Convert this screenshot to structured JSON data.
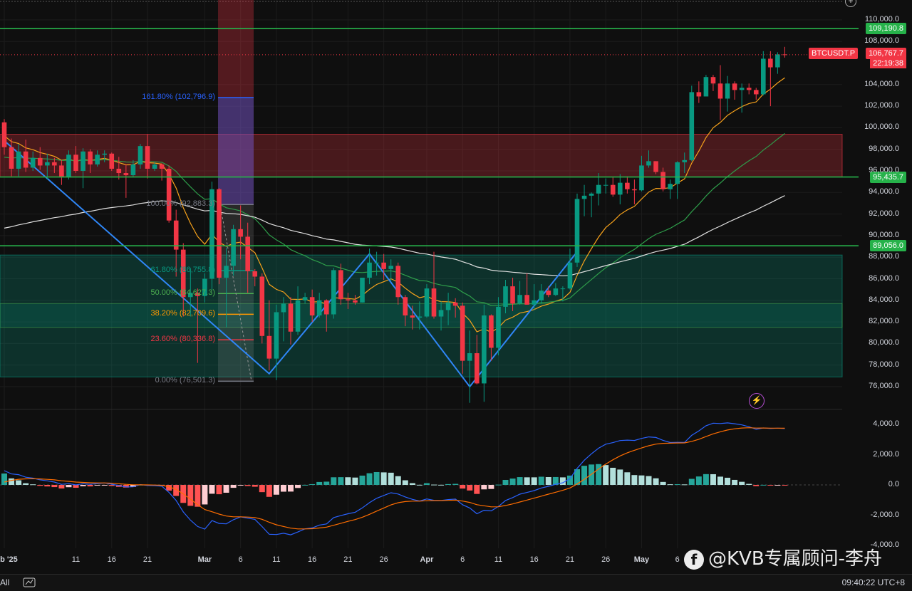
{
  "chart_data": {
    "type": "candlestick",
    "symbol": "BTCUSDT.P",
    "last_price": "106,767.7",
    "countdown": "22:19:38",
    "price_axis": [
      "110,000.0",
      "108,000.0",
      "104,000.0",
      "102,000.0",
      "100,000.0",
      "98,000.0",
      "96,000.0",
      "94,000.0",
      "92,000.0",
      "90,000.0",
      "88,000.0",
      "86,000.0",
      "84,000.0",
      "82,000.0",
      "80,000.0",
      "78,000.0",
      "76,000.0"
    ],
    "price_axis_values": [
      110000,
      108000,
      104000,
      102000,
      100000,
      98000,
      96000,
      94000,
      92000,
      90000,
      88000,
      86000,
      84000,
      82000,
      80000,
      78000,
      76000
    ],
    "level_badges": [
      {
        "label": "109,190.8",
        "value": 109190.8,
        "color": "green"
      },
      {
        "label": "95,435.7",
        "value": 95435.7,
        "color": "green"
      },
      {
        "label": "89,056.0",
        "value": 89056.0,
        "color": "green"
      }
    ],
    "fib_levels": [
      {
        "label": "161.80% (102,796.9)",
        "value": 102796.9,
        "color": "#2962ff"
      },
      {
        "label": "100.00% (92,883.3)",
        "value": 92883.3,
        "color": "#787b86"
      },
      {
        "label": "61.80% (86,755.8)",
        "value": 86755.8,
        "color": "#089981"
      },
      {
        "label": "50.00% (84,627.3)",
        "value": 84627.3,
        "color": "#4caf50"
      },
      {
        "label": "38.20% (82,709.6)",
        "value": 82709.6,
        "color": "#ff9800"
      },
      {
        "label": "23.60% (80,336.8)",
        "value": 80336.8,
        "color": "#f23645"
      },
      {
        "label": "0.00% (76,501.3)",
        "value": 76501.3,
        "color": "#787b86"
      }
    ],
    "zones": [
      {
        "name": "supply",
        "low": 95435.7,
        "high": 99400,
        "color": "#f23645"
      },
      {
        "name": "demand",
        "low": 76900,
        "high": 88200,
        "color": "#089981"
      }
    ],
    "x_axis": [
      "Feb '25",
      "11",
      "16",
      "21",
      "Mar",
      "6",
      "11",
      "16",
      "21",
      "26",
      "Apr",
      "6",
      "11",
      "16",
      "21",
      "26",
      "May",
      "6"
    ],
    "x_axis_dates": [
      "2025-02-01",
      "2025-02-11",
      "2025-02-16",
      "2025-02-21",
      "2025-03-01",
      "2025-03-06",
      "2025-03-11",
      "2025-03-16",
      "2025-03-21",
      "2025-03-26",
      "2025-04-01",
      "2025-04-06",
      "2025-04-11",
      "2025-04-16",
      "2025-04-21",
      "2025-04-26",
      "2025-05-01",
      "2025-05-06"
    ],
    "candles": [
      [
        "2025-02-01",
        100500,
        100800,
        97500,
        98200
      ],
      [
        "2025-02-02",
        98200,
        99000,
        95500,
        96200
      ],
      [
        "2025-02-03",
        96200,
        98500,
        95500,
        97800
      ],
      [
        "2025-02-04",
        97800,
        98900,
        95900,
        96300
      ],
      [
        "2025-02-05",
        96300,
        97800,
        96000,
        97200
      ],
      [
        "2025-02-06",
        97200,
        98200,
        96100,
        96500
      ],
      [
        "2025-02-07",
        96500,
        97600,
        95200,
        96800
      ],
      [
        "2025-02-08",
        96800,
        97200,
        95800,
        96500
      ],
      [
        "2025-02-09",
        96500,
        97000,
        94700,
        95400
      ],
      [
        "2025-02-10",
        95400,
        97900,
        95200,
        97500
      ],
      [
        "2025-02-11",
        97500,
        98300,
        95800,
        96000
      ],
      [
        "2025-02-12",
        96000,
        98100,
        94400,
        97800
      ],
      [
        "2025-02-13",
        97800,
        98000,
        95800,
        96600
      ],
      [
        "2025-02-14",
        96600,
        97900,
        96400,
        97500
      ],
      [
        "2025-02-15",
        97500,
        97900,
        96800,
        97600
      ],
      [
        "2025-02-16",
        97600,
        97700,
        96000,
        96200
      ],
      [
        "2025-02-17",
        96200,
        97300,
        95200,
        95800
      ],
      [
        "2025-02-18",
        95800,
        96600,
        93500,
        95600
      ],
      [
        "2025-02-19",
        95600,
        97000,
        95400,
        96600
      ],
      [
        "2025-02-20",
        96600,
        98500,
        96200,
        98300
      ],
      [
        "2025-02-21",
        98300,
        99400,
        95300,
        96200
      ],
      [
        "2025-02-22",
        96200,
        96800,
        96000,
        96600
      ],
      [
        "2025-02-23",
        96600,
        96700,
        95100,
        96200
      ],
      [
        "2025-02-24",
        96200,
        96500,
        91200,
        91400
      ],
      [
        "2025-02-25",
        91400,
        92400,
        86200,
        88700
      ],
      [
        "2025-02-26",
        88700,
        89300,
        82500,
        84300
      ],
      [
        "2025-02-27",
        84300,
        87000,
        82500,
        84700
      ],
      [
        "2025-02-28",
        84700,
        85100,
        78200,
        84400
      ],
      [
        "2025-03-01",
        84400,
        86500,
        83800,
        86000
      ],
      [
        "2025-03-02",
        86000,
        95000,
        85000,
        94300
      ],
      [
        "2025-03-03",
        94300,
        94400,
        85500,
        86100
      ],
      [
        "2025-03-04",
        86100,
        88900,
        81500,
        87200
      ],
      [
        "2025-03-05",
        87200,
        91000,
        86300,
        90600
      ],
      [
        "2025-03-06",
        90600,
        92800,
        87800,
        89900
      ],
      [
        "2025-03-07",
        89900,
        91200,
        84700,
        86700
      ],
      [
        "2025-03-08",
        86700,
        86900,
        85300,
        86200
      ],
      [
        "2025-03-09",
        86200,
        86500,
        80000,
        80700
      ],
      [
        "2025-03-10",
        80700,
        84000,
        77500,
        78600
      ],
      [
        "2025-03-11",
        78600,
        83600,
        76600,
        82900
      ],
      [
        "2025-03-12",
        82900,
        84300,
        80200,
        83700
      ],
      [
        "2025-03-13",
        83700,
        84300,
        79900,
        81100
      ],
      [
        "2025-03-14",
        81100,
        85300,
        80800,
        84000
      ],
      [
        "2025-03-15",
        84000,
        84700,
        83700,
        84300
      ],
      [
        "2025-03-16",
        84300,
        85000,
        82000,
        82600
      ],
      [
        "2025-03-17",
        82600,
        84700,
        82400,
        84000
      ],
      [
        "2025-03-18",
        84000,
        84100,
        81100,
        82700
      ],
      [
        "2025-03-19",
        82700,
        87000,
        82300,
        86800
      ],
      [
        "2025-03-20",
        86800,
        87400,
        83600,
        84100
      ],
      [
        "2025-03-21",
        84100,
        84700,
        83200,
        84000
      ],
      [
        "2025-03-22",
        84000,
        84500,
        83600,
        83800
      ],
      [
        "2025-03-23",
        83800,
        86100,
        83800,
        86100
      ],
      [
        "2025-03-24",
        86100,
        88800,
        85500,
        87500
      ],
      [
        "2025-03-25",
        87500,
        88500,
        86300,
        87500
      ],
      [
        "2025-03-26",
        87500,
        88300,
        85900,
        86900
      ],
      [
        "2025-03-27",
        86900,
        87800,
        85800,
        87200
      ],
      [
        "2025-03-28",
        87200,
        87500,
        83600,
        84300
      ],
      [
        "2025-03-29",
        84300,
        84500,
        81600,
        82600
      ],
      [
        "2025-03-30",
        82600,
        83500,
        81300,
        82400
      ],
      [
        "2025-03-31",
        82400,
        83900,
        81300,
        82500
      ],
      [
        "2025-04-01",
        82500,
        85500,
        82400,
        85100
      ],
      [
        "2025-04-02",
        85100,
        88500,
        82300,
        82500
      ],
      [
        "2025-04-03",
        82500,
        83900,
        81200,
        83100
      ],
      [
        "2025-04-04",
        83100,
        84700,
        81700,
        83800
      ],
      [
        "2025-04-05",
        83800,
        84200,
        82400,
        83500
      ],
      [
        "2025-04-06",
        83500,
        83800,
        77200,
        78400
      ],
      [
        "2025-04-07",
        78400,
        81200,
        74500,
        79100
      ],
      [
        "2025-04-08",
        79100,
        80800,
        76200,
        76300
      ],
      [
        "2025-04-09",
        76300,
        83600,
        74600,
        82600
      ],
      [
        "2025-04-10",
        82600,
        82700,
        78400,
        79600
      ],
      [
        "2025-04-11",
        79600,
        84300,
        78900,
        83400
      ],
      [
        "2025-04-12",
        83400,
        85900,
        82800,
        85300
      ],
      [
        "2025-04-13",
        85300,
        86100,
        83000,
        83700
      ],
      [
        "2025-04-14",
        83700,
        85800,
        83600,
        84500
      ],
      [
        "2025-04-15",
        84500,
        86500,
        83600,
        83600
      ],
      [
        "2025-04-16",
        83600,
        85500,
        83100,
        84000
      ],
      [
        "2025-04-17",
        84000,
        85500,
        83700,
        84900
      ],
      [
        "2025-04-18",
        84900,
        85300,
        84300,
        84500
      ],
      [
        "2025-04-19",
        84500,
        85600,
        84400,
        85100
      ],
      [
        "2025-04-20",
        85100,
        85300,
        83900,
        85100
      ],
      [
        "2025-04-21",
        85100,
        88800,
        85000,
        87500
      ],
      [
        "2025-04-22",
        87500,
        93900,
        87100,
        93400
      ],
      [
        "2025-04-23",
        93400,
        94700,
        91800,
        93700
      ],
      [
        "2025-04-24",
        93700,
        94000,
        91700,
        93900
      ],
      [
        "2025-04-25",
        93900,
        95800,
        92800,
        94700
      ],
      [
        "2025-04-26",
        94700,
        95300,
        93900,
        94700
      ],
      [
        "2025-04-27",
        94700,
        95400,
        93600,
        93800
      ],
      [
        "2025-04-28",
        93800,
        95700,
        92900,
        94900
      ],
      [
        "2025-04-29",
        94900,
        95500,
        93900,
        94300
      ],
      [
        "2025-04-30",
        94300,
        95200,
        92900,
        94200
      ],
      [
        "2025-05-01",
        94200,
        97400,
        94100,
        96500
      ],
      [
        "2025-05-02",
        96500,
        97900,
        96300,
        96900
      ],
      [
        "2025-05-03",
        96900,
        96900,
        95700,
        95900
      ],
      [
        "2025-05-04",
        95900,
        96300,
        94100,
        94300
      ],
      [
        "2025-05-05",
        94300,
        95200,
        93400,
        94800
      ],
      [
        "2025-05-06",
        94800,
        96900,
        93400,
        96800
      ],
      [
        "2025-05-07",
        96800,
        97700,
        95800,
        97000
      ],
      [
        "2025-05-08",
        97000,
        103900,
        96900,
        103300
      ],
      [
        "2025-05-09",
        103300,
        104300,
        102300,
        102900
      ],
      [
        "2025-05-10",
        102900,
        104900,
        102900,
        104700
      ],
      [
        "2025-05-11",
        104700,
        104900,
        103400,
        104100
      ],
      [
        "2025-05-12",
        104100,
        105800,
        100700,
        102700
      ],
      [
        "2025-05-13",
        102700,
        104800,
        101500,
        104100
      ],
      [
        "2025-05-14",
        104100,
        104300,
        102600,
        103500
      ],
      [
        "2025-05-15",
        103500,
        104100,
        101400,
        103700
      ],
      [
        "2025-05-16",
        103700,
        104100,
        103100,
        103500
      ],
      [
        "2025-05-17",
        103500,
        103700,
        102600,
        103100
      ],
      [
        "2025-05-18",
        103100,
        107100,
        103000,
        106400
      ],
      [
        "2025-05-19",
        106400,
        107100,
        102000,
        105600
      ],
      [
        "2025-05-20",
        105600,
        107000,
        105000,
        106800
      ],
      [
        "2025-05-21",
        106800,
        107500,
        106500,
        106767.7
      ]
    ],
    "moving_averages": [
      {
        "name": "EMA fast",
        "color": "#f7a21b"
      },
      {
        "name": "EMA mid",
        "color": "#2e9d4a"
      },
      {
        "name": "EMA slow",
        "color": "#e0e0e0"
      }
    ],
    "macd_axis": [
      "4,000.0",
      "2,000.0",
      "0.0",
      "-2,000.0",
      "-4,000.0"
    ],
    "macd_axis_values": [
      4000,
      2000,
      0,
      -2000,
      -4000
    ],
    "macd_colors": {
      "macd": "#2962ff",
      "signal": "#ff6d00",
      "hist_up_strong": "#26a69a",
      "hist_up_weak": "#b2dfdb",
      "hist_dn_strong": "#ff5252",
      "hist_dn_weak": "#ffcdd2"
    }
  },
  "watermark": "@KVB专属顾问-李舟",
  "watermark_icon": "f",
  "bottom_bar": {
    "range_label": "All",
    "clock": "09:40:22 UTC+8"
  },
  "icons": {
    "compare": "compare-icon",
    "plus": "plus-icon",
    "bolt": "bolt-icon"
  },
  "colors": {
    "up": "#089981",
    "down": "#f23645",
    "bg": "#0f0f0f",
    "grid": "#1e1e1e"
  }
}
